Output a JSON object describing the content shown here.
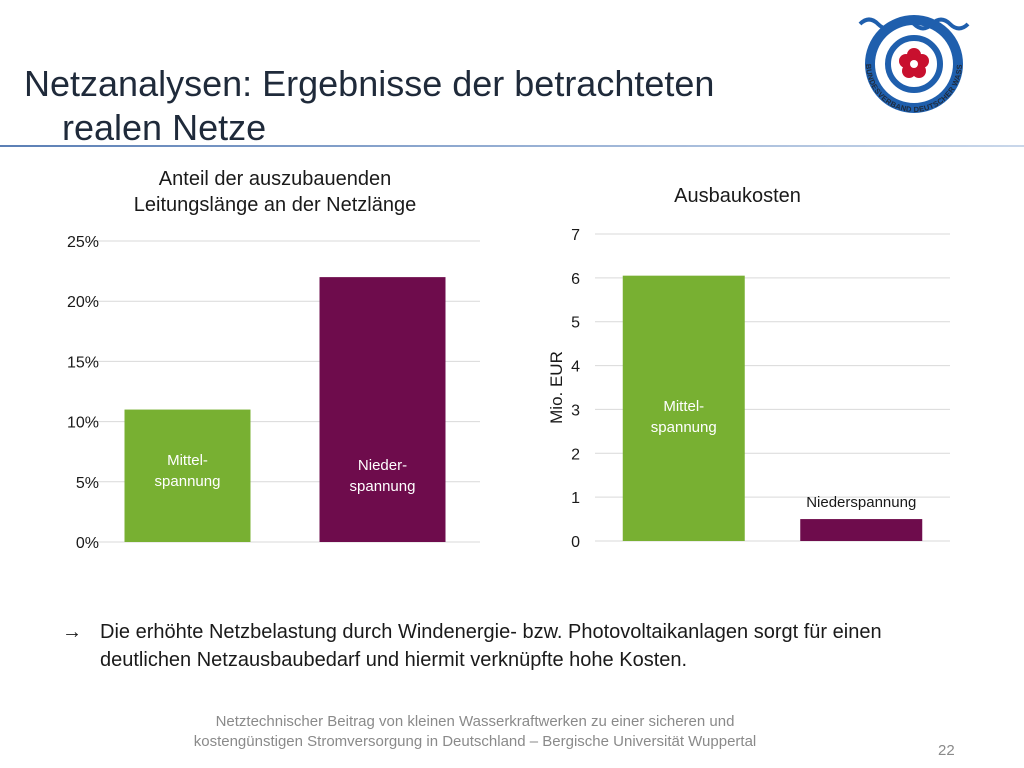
{
  "slide": {
    "title_line1": "Netzanalysen: Ergebnisse der betrachteten",
    "title_line2": "realen Netze",
    "bullet_arrow": "→",
    "bullet_text": "Die erhöhte Netzbelastung durch Windenergie- bzw. Photovoltaikanlagen sorgt für einen deutlichen Netzausbaubedarf und hiermit verknüpfte hohe Kosten.",
    "footer_line1": "Netztechnischer Beitrag von kleinen Wasserkraftwerken zu einer sicheren und",
    "footer_line2": "kostengünstigen Stromversorgung in Deutschland – Bergische Universität Wuppertal",
    "page_number": "22"
  },
  "logo": {
    "text": "BUNDESVERBAND DEUTSCHER WASSERKRAFTWERKE",
    "colors": {
      "blue": "#1f5fad",
      "red": "#c8102e"
    }
  },
  "colors": {
    "green": "#78b032",
    "purple": "#6e0c4c",
    "grid": "#d9d9d9"
  },
  "chart_data": [
    {
      "type": "bar",
      "title_line1": "Anteil der auszubauenden",
      "title_line2": "Leitungslänge an der Netzlänge",
      "categories": [
        "Mittel-\nspannung",
        "Nieder-\nspannung"
      ],
      "values": [
        11,
        22
      ],
      "unit": "%",
      "ylim": [
        0,
        25
      ],
      "yticks": [
        0,
        5,
        10,
        15,
        20,
        25
      ],
      "ytick_labels": [
        "0%",
        "5%",
        "10%",
        "15%",
        "20%",
        "25%"
      ],
      "ylabel": "",
      "grid": true,
      "bar_colors": [
        "#78b032",
        "#6e0c4c"
      ],
      "labels_inside": true
    },
    {
      "type": "bar",
      "title_line1": "Ausbaukosten",
      "categories": [
        "Mittel-\nspannung",
        "Niederspannung"
      ],
      "values": [
        6.05,
        0.5
      ],
      "ylim": [
        0,
        7
      ],
      "yticks": [
        0,
        1,
        2,
        3,
        4,
        5,
        6,
        7
      ],
      "ytick_labels": [
        "0",
        "1",
        "2",
        "3",
        "4",
        "5",
        "6",
        "7"
      ],
      "ylabel": "Mio. EUR",
      "grid": true,
      "bar_colors": [
        "#78b032",
        "#6e0c4c"
      ],
      "labels_inside": [
        true,
        false
      ]
    }
  ]
}
